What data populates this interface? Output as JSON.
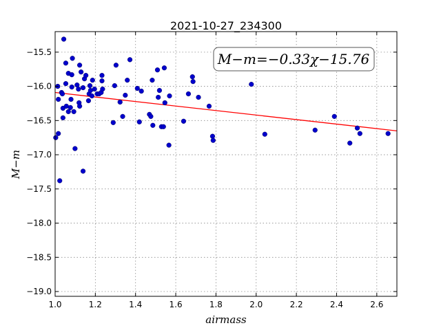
{
  "chart_data": {
    "type": "scatter",
    "title": "2021-10-27_234300",
    "xlabel": "airmass",
    "ylabel": "M−m",
    "xlim": [
      1.0,
      2.7
    ],
    "ylim": [
      -19.07,
      -15.2
    ],
    "y_inverted": true,
    "xticks": [
      1.0,
      1.2,
      1.4,
      1.6,
      1.8,
      2.0,
      2.2,
      2.4,
      2.6
    ],
    "xtick_labels": [
      "1.0",
      "1.2",
      "1.4",
      "1.6",
      "1.8",
      "2.0",
      "2.2",
      "2.4",
      "2.6"
    ],
    "yticks": [
      -15.5,
      -16.0,
      -16.5,
      -17.0,
      -17.5,
      -18.0,
      -18.5,
      -19.0
    ],
    "ytick_labels": [
      "−15.5",
      "−16.0",
      "−16.5",
      "−17.0",
      "−17.5",
      "−18.0",
      "−18.5",
      "−19.0"
    ],
    "grid": true,
    "annotation": "M−m=−0.33χ−15.76",
    "fit_line": {
      "slope": -0.33,
      "intercept": -15.76,
      "color": "#ff0000"
    },
    "point_color": "#0000cc",
    "points": [
      {
        "x": 1.003,
        "y": -16.75
      },
      {
        "x": 1.016,
        "y": -16.69
      },
      {
        "x": 1.013,
        "y": -16.0
      },
      {
        "x": 1.016,
        "y": -16.19
      },
      {
        "x": 1.023,
        "y": -17.38
      },
      {
        "x": 1.032,
        "y": -16.09
      },
      {
        "x": 1.036,
        "y": -16.11
      },
      {
        "x": 1.039,
        "y": -16.46
      },
      {
        "x": 1.039,
        "y": -16.32
      },
      {
        "x": 1.043,
        "y": -15.31
      },
      {
        "x": 1.053,
        "y": -15.66
      },
      {
        "x": 1.053,
        "y": -15.96
      },
      {
        "x": 1.056,
        "y": -16.29
      },
      {
        "x": 1.066,
        "y": -16.37
      },
      {
        "x": 1.066,
        "y": -15.81
      },
      {
        "x": 1.076,
        "y": -16.31
      },
      {
        "x": 1.079,
        "y": -16.19
      },
      {
        "x": 1.083,
        "y": -16.01
      },
      {
        "x": 1.083,
        "y": -15.83
      },
      {
        "x": 1.086,
        "y": -15.59
      },
      {
        "x": 1.093,
        "y": -16.37
      },
      {
        "x": 1.099,
        "y": -16.91
      },
      {
        "x": 1.109,
        "y": -15.98
      },
      {
        "x": 1.116,
        "y": -16.04
      },
      {
        "x": 1.119,
        "y": -16.24
      },
      {
        "x": 1.122,
        "y": -16.29
      },
      {
        "x": 1.122,
        "y": -15.69
      },
      {
        "x": 1.129,
        "y": -15.79
      },
      {
        "x": 1.139,
        "y": -16.02
      },
      {
        "x": 1.139,
        "y": -17.24
      },
      {
        "x": 1.146,
        "y": -15.89
      },
      {
        "x": 1.153,
        "y": -15.84
      },
      {
        "x": 1.166,
        "y": -16.21
      },
      {
        "x": 1.169,
        "y": -16.11
      },
      {
        "x": 1.173,
        "y": -15.99
      },
      {
        "x": 1.176,
        "y": -16.06
      },
      {
        "x": 1.183,
        "y": -16.14
      },
      {
        "x": 1.186,
        "y": -15.91
      },
      {
        "x": 1.196,
        "y": -16.04
      },
      {
        "x": 1.209,
        "y": -16.11
      },
      {
        "x": 1.219,
        "y": -16.11
      },
      {
        "x": 1.229,
        "y": -16.09
      },
      {
        "x": 1.233,
        "y": -15.92
      },
      {
        "x": 1.233,
        "y": -15.84
      },
      {
        "x": 1.236,
        "y": -16.04
      },
      {
        "x": 1.289,
        "y": -16.53
      },
      {
        "x": 1.296,
        "y": -15.99
      },
      {
        "x": 1.303,
        "y": -15.69
      },
      {
        "x": 1.323,
        "y": -16.23
      },
      {
        "x": 1.336,
        "y": -16.44
      },
      {
        "x": 1.349,
        "y": -16.13
      },
      {
        "x": 1.359,
        "y": -15.91
      },
      {
        "x": 1.372,
        "y": -15.61
      },
      {
        "x": 1.409,
        "y": -16.03
      },
      {
        "x": 1.419,
        "y": -16.52
      },
      {
        "x": 1.429,
        "y": -16.07
      },
      {
        "x": 1.469,
        "y": -16.41
      },
      {
        "x": 1.476,
        "y": -16.44
      },
      {
        "x": 1.483,
        "y": -15.91
      },
      {
        "x": 1.486,
        "y": -16.57
      },
      {
        "x": 1.509,
        "y": -15.76
      },
      {
        "x": 1.513,
        "y": -16.16
      },
      {
        "x": 1.519,
        "y": -16.06
      },
      {
        "x": 1.529,
        "y": -16.59
      },
      {
        "x": 1.539,
        "y": -16.59
      },
      {
        "x": 1.543,
        "y": -15.73
      },
      {
        "x": 1.546,
        "y": -16.24
      },
      {
        "x": 1.566,
        "y": -16.86
      },
      {
        "x": 1.569,
        "y": -16.14
      },
      {
        "x": 1.639,
        "y": -16.51
      },
      {
        "x": 1.663,
        "y": -16.11
      },
      {
        "x": 1.683,
        "y": -15.86
      },
      {
        "x": 1.686,
        "y": -15.93
      },
      {
        "x": 1.713,
        "y": -16.16
      },
      {
        "x": 1.766,
        "y": -16.29
      },
      {
        "x": 1.783,
        "y": -16.73
      },
      {
        "x": 1.786,
        "y": -16.79
      },
      {
        "x": 1.976,
        "y": -15.97
      },
      {
        "x": 2.043,
        "y": -16.7
      },
      {
        "x": 2.293,
        "y": -16.64
      },
      {
        "x": 2.389,
        "y": -16.44
      },
      {
        "x": 2.466,
        "y": -16.83
      },
      {
        "x": 2.503,
        "y": -16.61
      },
      {
        "x": 2.516,
        "y": -16.69
      },
      {
        "x": 2.656,
        "y": -16.69
      }
    ]
  }
}
